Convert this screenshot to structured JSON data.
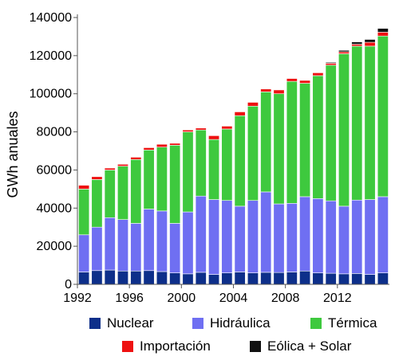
{
  "chart_data": {
    "type": "bar",
    "stacked": true,
    "ylabel": "GWh anuales",
    "xlabel": "",
    "ylim": [
      0,
      140000
    ],
    "yticks": [
      "0",
      "20000",
      "40000",
      "60000",
      "80000",
      "100000",
      "120000",
      "140000"
    ],
    "xtick_labels": [
      "1992",
      "1996",
      "2000",
      "2004",
      "2008",
      "2012"
    ],
    "grid": false,
    "legend_position": "bottom",
    "categories": [
      1992,
      1993,
      1994,
      1995,
      1996,
      1997,
      1998,
      1999,
      2000,
      2001,
      2002,
      2003,
      2004,
      2005,
      2006,
      2007,
      2008,
      2009,
      2010,
      2011,
      2012,
      2013,
      2014,
      2015
    ],
    "series": [
      {
        "name": "Nuclear",
        "color": "#0d2f8a",
        "values": [
          6500,
          7200,
          7500,
          7000,
          7000,
          7200,
          6700,
          6000,
          5500,
          6300,
          5200,
          6000,
          6500,
          6000,
          6300,
          6200,
          6500,
          7000,
          6000,
          5800,
          5500,
          5700,
          5200,
          6000
        ]
      },
      {
        "name": "Hidráulica",
        "color": "#6f6ff2",
        "values": [
          19500,
          22800,
          27500,
          27000,
          25000,
          32300,
          31800,
          26000,
          32500,
          40000,
          39300,
          38000,
          34500,
          38000,
          42200,
          36000,
          36000,
          39000,
          39000,
          38000,
          35500,
          38500,
          39300,
          40000
        ]
      },
      {
        "name": "Térmica",
        "color": "#3ec93e",
        "values": [
          24000,
          25000,
          25000,
          28000,
          33500,
          31000,
          33500,
          41000,
          42000,
          34700,
          31500,
          37500,
          47500,
          49500,
          52500,
          57800,
          64000,
          59500,
          64500,
          71200,
          80000,
          80800,
          80500,
          84300
        ]
      },
      {
        "name": "Importación",
        "color": "#ee1111",
        "values": [
          2000,
          1500,
          1000,
          1000,
          1200,
          1200,
          1500,
          1000,
          1000,
          1000,
          2000,
          1500,
          2000,
          2000,
          1500,
          2000,
          1500,
          1500,
          1500,
          1000,
          1000,
          1000,
          2000,
          2000
        ]
      },
      {
        "name": "Eólica + Solar",
        "color": "#111111",
        "values": [
          0,
          0,
          0,
          0,
          0,
          0,
          0,
          0,
          0,
          0,
          0,
          0,
          0,
          0,
          0,
          0,
          0,
          0,
          0,
          500,
          800,
          1200,
          1500,
          2000
        ]
      }
    ]
  }
}
